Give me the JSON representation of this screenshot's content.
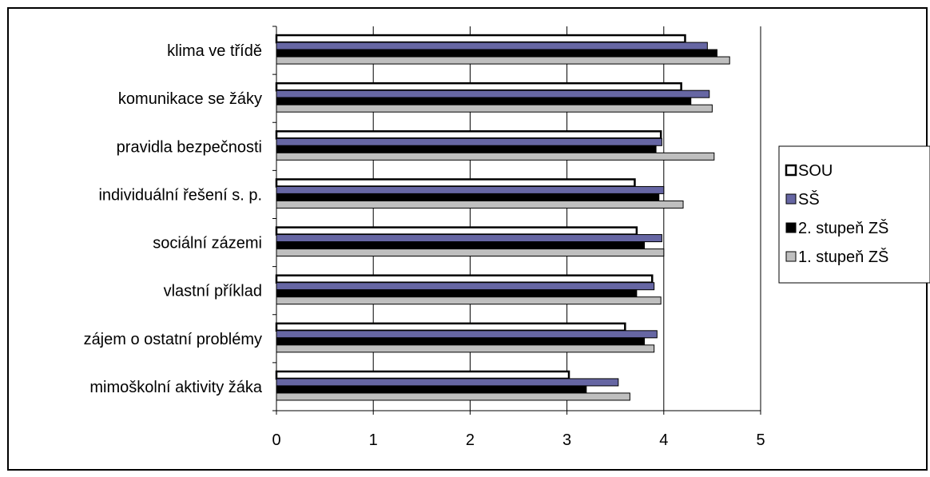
{
  "chart_data": {
    "type": "bar",
    "orientation": "horizontal",
    "categories": [
      "klima ve třídě",
      "komunikace se žáky",
      "pravidla bezpečnosti",
      "individuální řešení s. p.",
      "sociální zázemi",
      "vlastní příklad",
      "zájem o ostatní problémy",
      "mimoškolní aktivity žáka"
    ],
    "series": [
      {
        "name": "SOU",
        "color": "#ffffff",
        "values": [
          4.22,
          4.18,
          3.97,
          3.7,
          3.72,
          3.88,
          3.6,
          3.02
        ]
      },
      {
        "name": "SŠ",
        "color": "#6666a3",
        "values": [
          4.45,
          4.47,
          3.98,
          4.0,
          3.98,
          3.9,
          3.93,
          3.53
        ]
      },
      {
        "name": "2. stupeň ZŠ",
        "color": "#000000",
        "values": [
          4.55,
          4.28,
          3.92,
          3.95,
          3.8,
          3.72,
          3.8,
          3.2
        ]
      },
      {
        "name": "1. stupeň ZŠ",
        "color": "#bfbfbf",
        "values": [
          4.68,
          4.5,
          4.52,
          4.2,
          4.0,
          3.97,
          3.9,
          3.65
        ]
      }
    ],
    "xlim": [
      0,
      5
    ],
    "x_ticks": [
      0,
      1,
      2,
      3,
      4,
      5
    ],
    "grid": true,
    "legend_position": "right"
  }
}
